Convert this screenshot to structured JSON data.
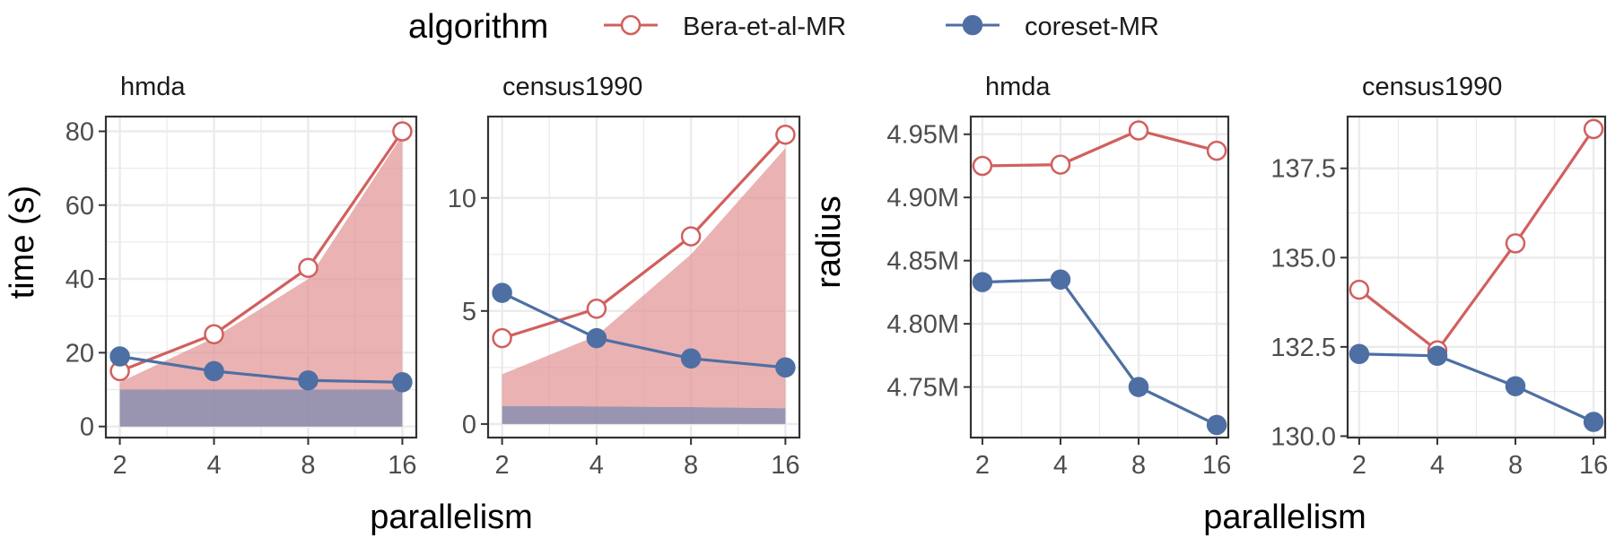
{
  "legend": {
    "title": "algorithm",
    "entries": [
      {
        "name": "Bera-et-al-MR",
        "color": "#d1605e",
        "marker": "open-circle"
      },
      {
        "name": "coreset-MR",
        "color": "#4e6fa3",
        "marker": "filled-circle"
      }
    ]
  },
  "x_axis_title": "parallelism",
  "colors": {
    "bera": "#d1605e",
    "coreset": "#4e6fa3",
    "bera_band": "#e08d8d",
    "coreset_band": "#8e8aa8",
    "grid": "#ebebeb",
    "panel_border": "#333333"
  },
  "chart_data": [
    {
      "type": "line",
      "group": "time",
      "title": "hmda",
      "ylabel": "time (s)",
      "x": [
        2,
        4,
        8,
        16
      ],
      "x_scale": "log2",
      "ylim": [
        -3,
        84
      ],
      "yticks": [
        0,
        20,
        40,
        60,
        80
      ],
      "ytick_labels": [
        "0",
        "20",
        "40",
        "60",
        "80"
      ],
      "grid": true,
      "series": [
        {
          "name": "Bera-et-al-MR",
          "values": [
            15,
            25,
            43,
            80
          ]
        },
        {
          "name": "coreset-MR",
          "values": [
            19,
            15,
            12.5,
            12
          ]
        }
      ],
      "bands": [
        {
          "name": "Bera-et-al-MR",
          "lower": [
            10,
            10,
            10,
            10
          ],
          "upper": [
            12,
            24,
            40,
            79
          ]
        },
        {
          "name": "coreset-MR",
          "lower": [
            0,
            0,
            0,
            0
          ],
          "upper": [
            10,
            10,
            10,
            10
          ]
        }
      ]
    },
    {
      "type": "line",
      "group": "time",
      "title": "census1990",
      "x": [
        2,
        4,
        8,
        16
      ],
      "x_scale": "log2",
      "ylim": [
        -0.6,
        13.6
      ],
      "yticks": [
        0,
        5,
        10
      ],
      "ytick_labels": [
        "0",
        "5",
        "10"
      ],
      "grid": true,
      "series": [
        {
          "name": "Bera-et-al-MR",
          "values": [
            3.8,
            5.1,
            8.3,
            12.8
          ]
        },
        {
          "name": "coreset-MR",
          "values": [
            5.8,
            3.8,
            2.9,
            2.5
          ]
        }
      ],
      "bands": [
        {
          "name": "Bera-et-al-MR",
          "lower": [
            0.8,
            0.78,
            0.75,
            0.7
          ],
          "upper": [
            2.2,
            3.9,
            7.5,
            12.2
          ]
        },
        {
          "name": "coreset-MR",
          "lower": [
            0,
            0,
            0,
            0
          ],
          "upper": [
            0.8,
            0.78,
            0.75,
            0.7
          ]
        }
      ]
    },
    {
      "type": "line",
      "group": "radius",
      "title": "hmda",
      "ylabel": "radius",
      "x": [
        2,
        4,
        8,
        16
      ],
      "x_scale": "log2",
      "ylim": [
        4.71,
        4.964
      ],
      "yticks": [
        4.75,
        4.8,
        4.85,
        4.9,
        4.95
      ],
      "ytick_labels": [
        "4.75M",
        "4.80M",
        "4.85M",
        "4.90M",
        "4.95M"
      ],
      "grid": true,
      "series": [
        {
          "name": "Bera-et-al-MR",
          "values": [
            4.925,
            4.926,
            4.953,
            4.937
          ]
        },
        {
          "name": "coreset-MR",
          "values": [
            4.833,
            4.835,
            4.75,
            4.72
          ]
        }
      ]
    },
    {
      "type": "line",
      "group": "radius",
      "title": "census1990",
      "x": [
        2,
        4,
        8,
        16
      ],
      "x_scale": "log2",
      "ylim": [
        129.96,
        138.95
      ],
      "yticks": [
        130.0,
        132.5,
        135.0,
        137.5
      ],
      "ytick_labels": [
        "130.0",
        "132.5",
        "135.0",
        "137.5"
      ],
      "grid": true,
      "series": [
        {
          "name": "Bera-et-al-MR",
          "values": [
            134.1,
            132.4,
            135.4,
            138.6
          ]
        },
        {
          "name": "coreset-MR",
          "values": [
            132.3,
            132.25,
            131.4,
            130.4
          ]
        }
      ]
    }
  ]
}
